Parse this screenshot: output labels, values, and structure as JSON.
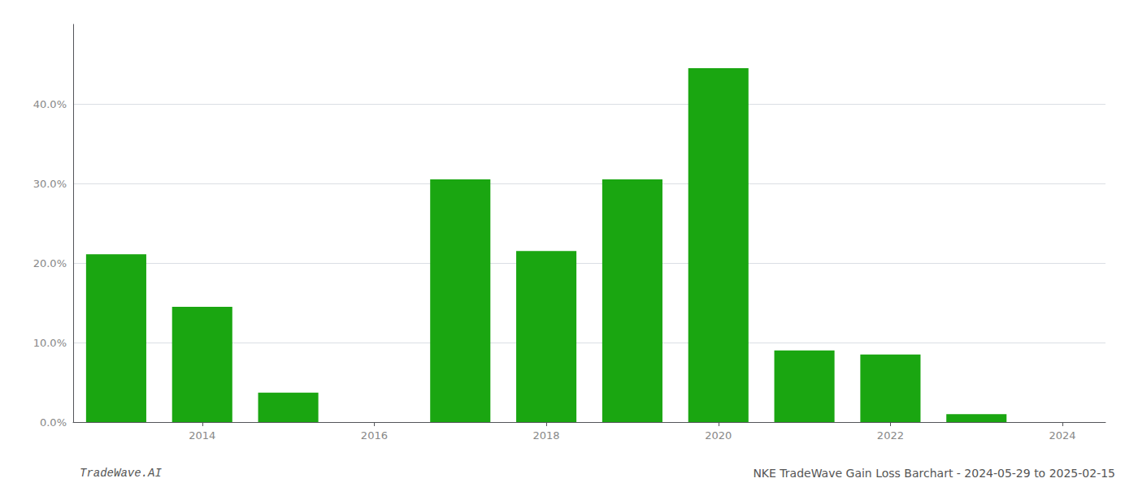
{
  "chart_data": {
    "type": "bar",
    "x": [
      2013,
      2014,
      2015,
      2016,
      2017,
      2018,
      2019,
      2020,
      2021,
      2022,
      2023
    ],
    "values": [
      0.211,
      0.145,
      0.037,
      0.0,
      0.305,
      0.215,
      0.305,
      0.445,
      0.09,
      0.085,
      0.01
    ],
    "color": "#1aa611",
    "xlim": [
      2012.5,
      2024.5
    ],
    "xticks": [
      2014,
      2016,
      2018,
      2020,
      2022,
      2024
    ],
    "ylim": [
      0,
      0.5
    ],
    "yticks": [
      {
        "value": 0.0,
        "label": "0.0%"
      },
      {
        "value": 0.1,
        "label": "10.0%"
      },
      {
        "value": 0.2,
        "label": "20.0%"
      },
      {
        "value": 0.3,
        "label": "30.0%"
      },
      {
        "value": 0.4,
        "label": "40.0%"
      }
    ],
    "grid": true,
    "annotations": [
      "TradeWave.AI",
      "NKE TradeWave Gain Loss Barchart - 2024-05-29 to 2025-02-15"
    ]
  }
}
